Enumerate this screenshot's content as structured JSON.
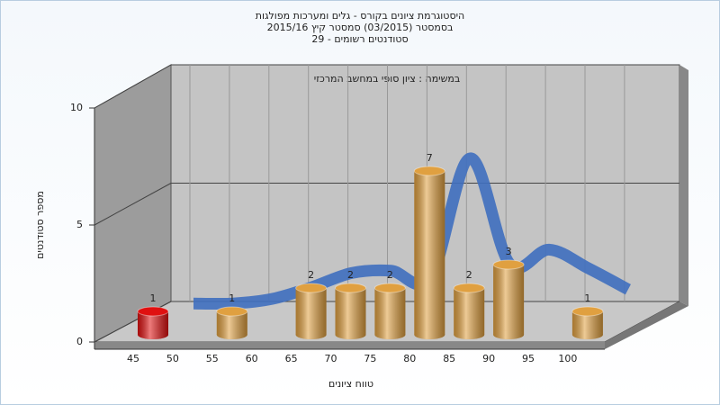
{
  "chart_data": {
    "type": "bar",
    "title": [
      "היסטוגרמת ציונים בקורס - גלים ומערכות מפולגות",
      "בסמסטר  (03/2015)  סמסטר קיץ 2015/16",
      "סטודנטים רשומים - 29"
    ],
    "subtitle": "במשימה : ציון סופי במחשב המרכזי",
    "y_label": "מספר סטודנטים",
    "x_label": "טווח ציונים",
    "categories": [
      "45",
      "50",
      "55",
      "60",
      "65",
      "70",
      "75",
      "80",
      "85",
      "90",
      "95",
      "100"
    ],
    "values": [
      1,
      0,
      1,
      0,
      2,
      2,
      2,
      7,
      2,
      3,
      0,
      1
    ],
    "colors": [
      "#e01010",
      "#e0a040",
      "#e0a040",
      "#e0a040",
      "#e0a040",
      "#e0a040",
      "#e0a040",
      "#e0a040",
      "#e0a040",
      "#e0a040",
      "#e0a040",
      "#e0a040"
    ],
    "line": {
      "values": [
        0.3,
        0.3,
        0.5,
        1.0,
        1.6,
        1.7,
        1.4,
        6.5,
        2.0,
        2.6,
        1.8,
        0.9
      ],
      "color": "#3f6fbf"
    },
    "ylim": [
      0,
      10
    ],
    "yticks": [
      0,
      5,
      10
    ],
    "grid": true
  }
}
